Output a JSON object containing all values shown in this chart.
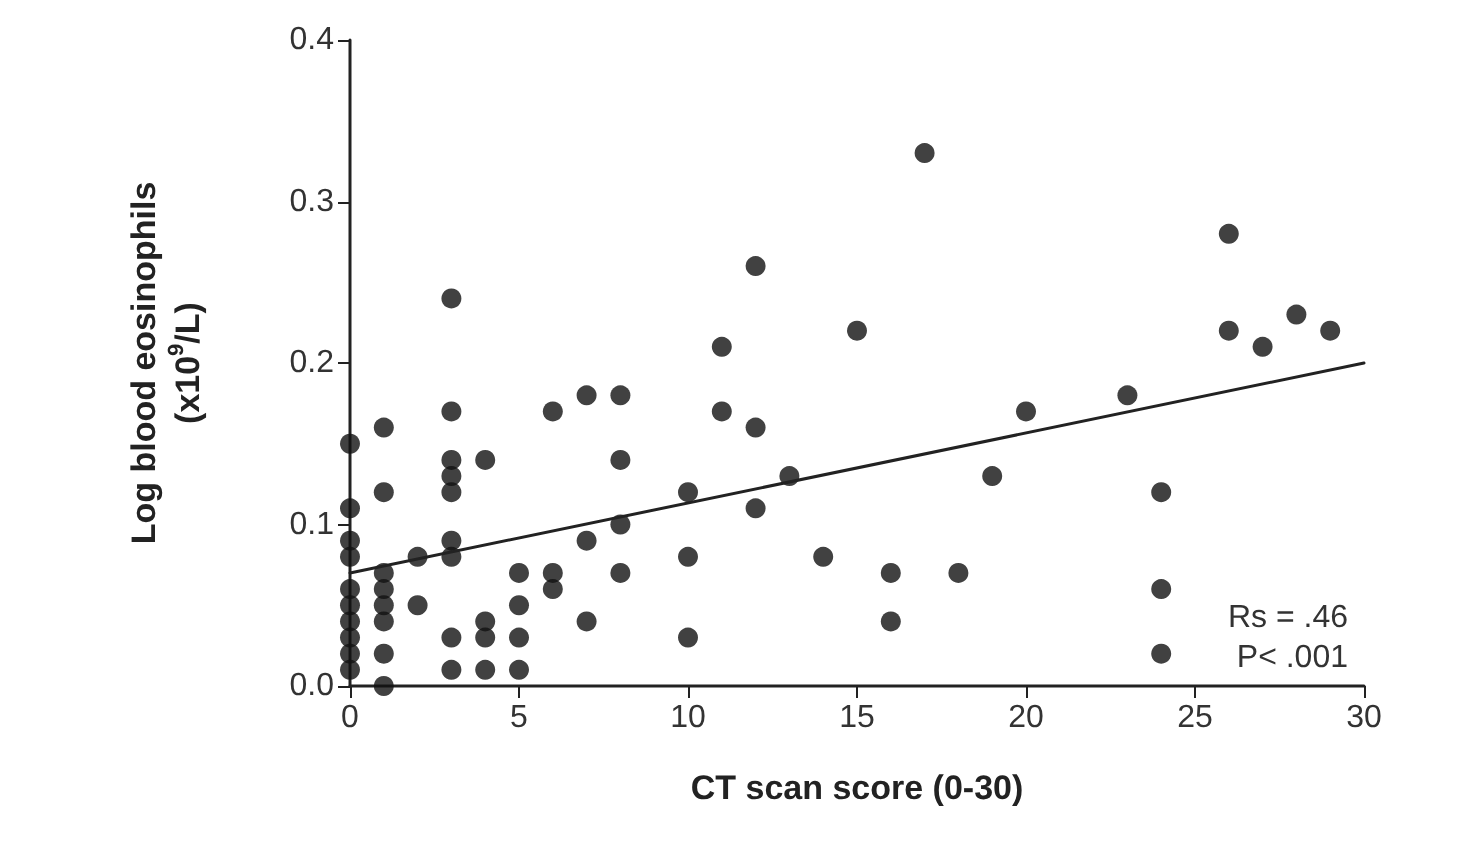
{
  "chart_data": {
    "type": "scatter",
    "xlabel": "CT scan score (0-30)",
    "ylabel": "Log blood eosinophils\n(x10$^{9}$/L)",
    "xlim": [
      0,
      30
    ],
    "xticks": [
      0,
      5,
      10,
      15,
      20,
      25,
      30
    ],
    "ylim": [
      0,
      0.4
    ],
    "yticks": [
      {
        "value": 0,
        "label": "0.0"
      },
      0.1,
      0.2,
      0.3,
      0.4
    ],
    "grid": false,
    "marker": "circle",
    "annotations": [
      "Rs = .46",
      "P< .001"
    ],
    "series": [
      {
        "type": "scatter",
        "color": "#111111",
        "x": [
          0,
          0,
          0,
          0,
          0,
          0,
          0,
          0,
          0,
          0,
          1,
          1,
          1,
          1,
          1,
          1,
          1,
          1,
          2,
          2,
          3,
          3,
          3,
          3,
          3,
          3,
          3,
          3,
          3,
          4,
          4,
          4,
          4,
          5,
          5,
          5,
          5,
          6,
          6,
          6,
          7,
          7,
          7,
          8,
          8,
          8,
          8,
          10,
          10,
          10,
          11,
          11,
          12,
          12,
          12,
          13,
          14,
          15,
          16,
          16,
          17,
          18,
          19,
          20,
          23,
          24,
          24,
          24,
          26,
          26,
          27,
          28,
          29
        ],
        "values": [
          0.15,
          0.11,
          0.09,
          0.08,
          0.06,
          0.05,
          0.04,
          0.03,
          0.02,
          0.01,
          0.16,
          0.12,
          0.07,
          0.06,
          0.05,
          0.04,
          0.02,
          0.0,
          0.08,
          0.05,
          0.24,
          0.17,
          0.14,
          0.13,
          0.12,
          0.09,
          0.08,
          0.03,
          0.01,
          0.14,
          0.04,
          0.03,
          0.01,
          0.07,
          0.05,
          0.03,
          0.01,
          0.17,
          0.07,
          0.06,
          0.18,
          0.09,
          0.04,
          0.18,
          0.14,
          0.1,
          0.07,
          0.12,
          0.08,
          0.03,
          0.21,
          0.17,
          0.26,
          0.16,
          0.11,
          0.13,
          0.08,
          0.22,
          0.07,
          0.04,
          0.33,
          0.07,
          0.13,
          0.17,
          0.18,
          0.12,
          0.06,
          0.02,
          0.28,
          0.22,
          0.21,
          0.23,
          0.22
        ]
      },
      {
        "type": "line",
        "color": "#222222",
        "line_style": "solid",
        "marker": "none",
        "x": [
          0,
          30
        ],
        "values": [
          0.07,
          0.2
        ]
      }
    ]
  }
}
